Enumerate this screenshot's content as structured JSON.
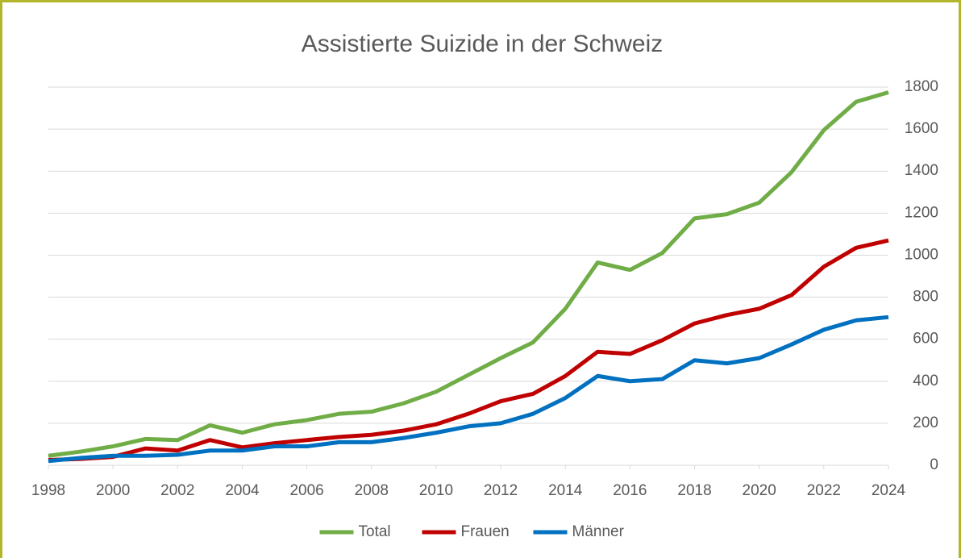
{
  "chart_data": {
    "type": "line",
    "title": "Assistierte Suizide in der Schweiz",
    "x": [
      1998,
      1999,
      2000,
      2001,
      2002,
      2003,
      2004,
      2005,
      2006,
      2007,
      2008,
      2009,
      2010,
      2011,
      2012,
      2013,
      2014,
      2015,
      2016,
      2017,
      2018,
      2019,
      2020,
      2021,
      2022,
      2023,
      2024
    ],
    "series": [
      {
        "name": "Total",
        "color": "#70ad47",
        "values": [
          45,
          65,
          90,
          125,
          120,
          190,
          155,
          195,
          215,
          245,
          255,
          295,
          350,
          430,
          510,
          585,
          745,
          965,
          930,
          1010,
          1175,
          1195,
          1250,
          1395,
          1595,
          1730,
          1775
        ]
      },
      {
        "name": "Frauen",
        "color": "#c00000",
        "values": [
          25,
          30,
          40,
          80,
          70,
          120,
          85,
          105,
          120,
          135,
          145,
          165,
          195,
          245,
          305,
          340,
          425,
          540,
          530,
          595,
          675,
          715,
          745,
          810,
          945,
          1035,
          1070
        ]
      },
      {
        "name": "Männer",
        "color": "#0070c0",
        "values": [
          20,
          35,
          45,
          45,
          50,
          70,
          70,
          90,
          90,
          110,
          110,
          130,
          155,
          185,
          200,
          245,
          320,
          425,
          400,
          410,
          500,
          485,
          510,
          575,
          645,
          690,
          705
        ]
      }
    ],
    "xlim": [
      1998,
      2024
    ],
    "xticks": [
      1998,
      2000,
      2002,
      2004,
      2006,
      2008,
      2010,
      2012,
      2014,
      2016,
      2018,
      2020,
      2022,
      2024
    ],
    "ylim": [
      0,
      1800
    ],
    "yticks": [
      0,
      200,
      400,
      600,
      800,
      1000,
      1200,
      1400,
      1600,
      1800
    ],
    "grid": true,
    "legend": "bottom"
  }
}
